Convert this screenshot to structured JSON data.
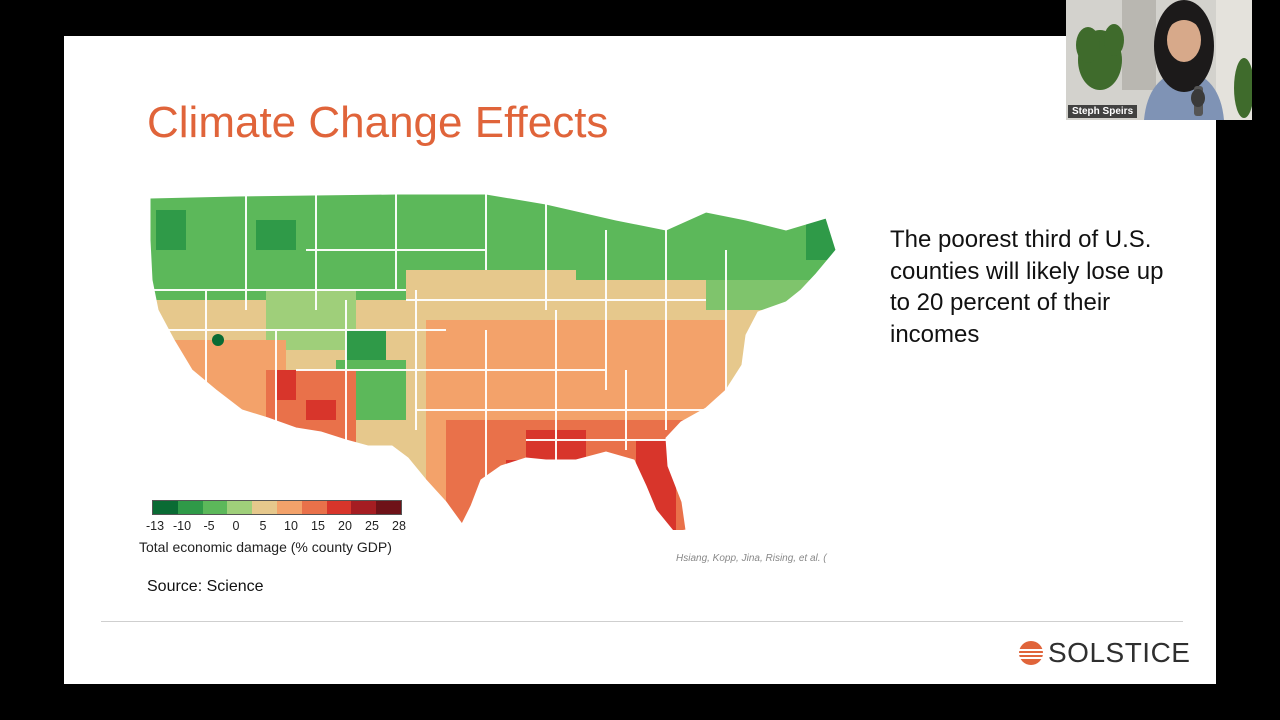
{
  "slide": {
    "title": "Climate Change Effects",
    "bullet_text": "The poorest third of U.S. counties will likely lose up to 20 percent of their incomes",
    "legend": {
      "ticks": [
        "-13",
        "-10",
        "-5",
        "0",
        "5",
        "10",
        "15",
        "20",
        "25",
        "28"
      ],
      "label": "Total economic damage (% county GDP)",
      "colors": [
        "#0a6b34",
        "#2f9a48",
        "#5cb85a",
        "#9fcf7a",
        "#e6c88c",
        "#f3a26a",
        "#e9714a",
        "#d8352b",
        "#a51d22",
        "#6e1218"
      ]
    },
    "citation": "Hsiang, Kopp, Jina, Rising, et al. (",
    "source": "Source: Science",
    "brand": "SOLSTICE"
  },
  "webcam": {
    "participant_name": "Steph Speirs"
  },
  "colors": {
    "title": "#e0643a",
    "brand_icon": "#e0643a"
  },
  "icons": {
    "brand_logo": "sun-logo-icon",
    "map": "us-county-map-image"
  }
}
